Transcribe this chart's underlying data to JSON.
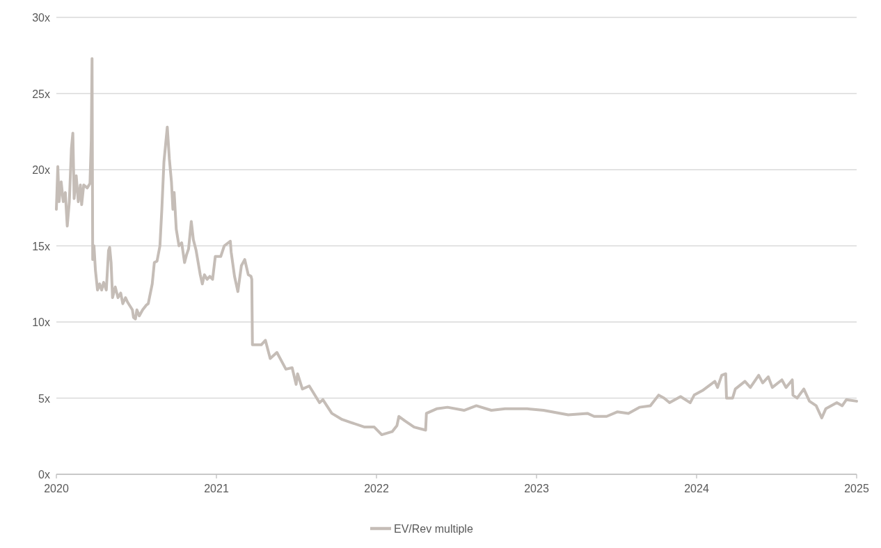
{
  "chart_data": {
    "type": "line",
    "xlim": [
      2020,
      2025
    ],
    "xticks": [
      2020,
      2021,
      2022,
      2023,
      2024,
      2025
    ],
    "ylim": [
      0,
      30
    ],
    "yticks": [
      {
        "value": 0,
        "label": "0x"
      },
      {
        "value": 5,
        "label": "5x"
      },
      {
        "value": 10,
        "label": "10x"
      },
      {
        "value": 15,
        "label": "15x"
      },
      {
        "value": 20,
        "label": "20x"
      },
      {
        "value": 25,
        "label": "25x"
      },
      {
        "value": 30,
        "label": "30x"
      }
    ],
    "grid": "y",
    "legend": "bottom",
    "line_style": "solid",
    "series": [
      {
        "name": "EV/Rev multiple",
        "color": "#c5bdb7",
        "x": [
          2020,
          2020.009,
          2020.017,
          2020.03,
          2020.043,
          2020.056,
          2020.068,
          2020.081,
          2020.094,
          2020.103,
          2020.111,
          2020.124,
          2020.137,
          2020.15,
          2020.158,
          2020.171,
          2020.193,
          2020.21,
          2020.218,
          2020.223,
          2020.227,
          2020.235,
          2020.244,
          2020.257,
          2020.27,
          2020.283,
          2020.295,
          2020.312,
          2020.326,
          2020.333,
          2020.342,
          2020.351,
          2020.368,
          2020.385,
          2020.402,
          2020.415,
          2020.432,
          2020.445,
          2020.475,
          2020.482,
          2020.494,
          2020.503,
          2020.518,
          2020.539,
          2020.561,
          2020.574,
          2020.599,
          2020.612,
          2020.629,
          2020.647,
          2020.659,
          2020.672,
          2020.693,
          2020.706,
          2020.719,
          2020.728,
          2020.736,
          2020.749,
          2020.766,
          2020.783,
          2020.801,
          2020.813,
          2020.826,
          2020.843,
          2020.856,
          2020.873,
          2020.886,
          2020.899,
          2020.912,
          2020.925,
          2020.942,
          2020.959,
          2020.976,
          2020.993,
          2021.027,
          2021.049,
          2021.087,
          2021.092,
          2021.113,
          2021.134,
          2021.156,
          2021.177,
          2021.199,
          2021.216,
          2021.221,
          2021.225,
          2021.28,
          2021.306,
          2021.336,
          2021.378,
          2021.434,
          2021.473,
          2021.498,
          2021.507,
          2021.537,
          2021.58,
          2021.644,
          2021.665,
          2021.721,
          2021.785,
          2021.841,
          2021.926,
          2021.986,
          2022.033,
          2022.098,
          2022.128,
          2022.14,
          2022.179,
          2022.235,
          2022.307,
          2022.312,
          2022.376,
          2022.444,
          2022.547,
          2022.624,
          2022.718,
          2022.804,
          2022.941,
          2023.044,
          2023.198,
          2023.318,
          2023.36,
          2023.438,
          2023.506,
          2023.574,
          2023.643,
          2023.711,
          2023.763,
          2023.797,
          2023.831,
          2023.9,
          2023.96,
          2023.985,
          2024.037,
          2024.088,
          2024.114,
          2024.131,
          2024.157,
          2024.182,
          2024.187,
          2024.225,
          2024.242,
          2024.302,
          2024.336,
          2024.388,
          2024.413,
          2024.448,
          2024.473,
          2024.533,
          2024.559,
          2024.598,
          2024.602,
          2024.628,
          2024.67,
          2024.705,
          2024.747,
          2024.782,
          2024.807,
          2024.876,
          2024.91,
          2024.936,
          2025
        ],
        "values": [
          17.4,
          20.2,
          17.9,
          19.2,
          17.9,
          18.5,
          16.3,
          17.9,
          21.4,
          22.4,
          18.1,
          19.6,
          17.9,
          19.0,
          17.7,
          19.0,
          18.8,
          19.1,
          21.9,
          27.3,
          14.1,
          15.0,
          13.4,
          12.1,
          12.5,
          12.1,
          12.6,
          12.1,
          14.7,
          14.9,
          13.9,
          11.6,
          12.3,
          11.6,
          11.9,
          11.2,
          11.6,
          11.3,
          10.8,
          10.3,
          10.2,
          10.8,
          10.4,
          10.8,
          11.1,
          11.2,
          12.5,
          13.9,
          14.0,
          15.0,
          17.4,
          20.5,
          22.8,
          20.7,
          19.2,
          17.4,
          18.5,
          16.1,
          15.0,
          15.2,
          13.9,
          14.4,
          14.8,
          16.6,
          15.4,
          14.7,
          13.9,
          13.1,
          12.5,
          13.1,
          12.8,
          13.0,
          12.8,
          14.3,
          14.3,
          15.0,
          15.3,
          14.6,
          13.0,
          12.0,
          13.7,
          14.1,
          13.1,
          13.0,
          12.8,
          8.5,
          8.5,
          8.8,
          7.6,
          8.0,
          6.9,
          7.0,
          5.9,
          6.6,
          5.6,
          5.8,
          4.7,
          4.9,
          4.0,
          3.6,
          3.4,
          3.1,
          3.1,
          2.6,
          2.8,
          3.2,
          3.8,
          3.5,
          3.1,
          2.9,
          4.0,
          4.3,
          4.4,
          4.2,
          4.5,
          4.2,
          4.3,
          4.3,
          4.2,
          3.9,
          4.0,
          3.8,
          3.8,
          4.1,
          4.0,
          4.4,
          4.5,
          5.2,
          5.0,
          4.7,
          5.1,
          4.7,
          5.2,
          5.5,
          5.9,
          6.1,
          5.7,
          6.5,
          6.6,
          5.0,
          5.0,
          5.6,
          6.1,
          5.7,
          6.5,
          6.0,
          6.4,
          5.7,
          6.2,
          5.7,
          6.2,
          5.2,
          5.0,
          5.6,
          4.8,
          4.5,
          3.7,
          4.3,
          4.7,
          4.5,
          4.9,
          4.8
        ]
      }
    ]
  }
}
